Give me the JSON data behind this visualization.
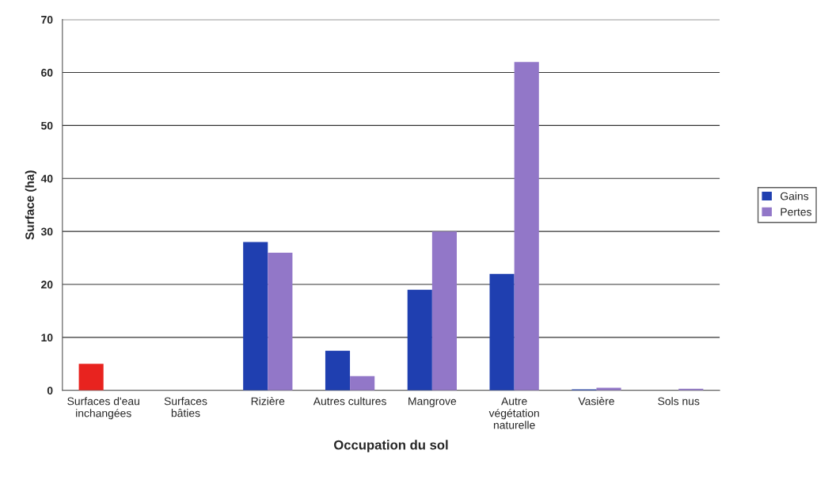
{
  "chart_data": {
    "type": "bar",
    "xlabel": "Occupation du sol",
    "ylabel": "Surface (ha)",
    "categories": [
      "Surfaces d'eau inchangées",
      "Surfaces bâties",
      "Rizière",
      "Autres cultures",
      "Mangrove",
      "Autre végétation naturelle",
      "Vasière",
      "Sols nus"
    ],
    "series": [
      {
        "name": "Gains",
        "color": "#1f3fb0",
        "colors": [
          "#e8231f",
          "#1f3fb0",
          "#1f3fb0",
          "#1f3fb0",
          "#1f3fb0",
          "#1f3fb0",
          "#1f3fb0",
          "#1f3fb0"
        ],
        "values": [
          5,
          0,
          28,
          7.5,
          19,
          22,
          0.2,
          0
        ]
      },
      {
        "name": "Pertes",
        "color": "#9277c8",
        "values": [
          null,
          0,
          26,
          2.7,
          30,
          62,
          0.5,
          0.3
        ]
      }
    ],
    "ylim": [
      0,
      70
    ],
    "yticks": [
      0,
      10,
      20,
      30,
      40,
      50,
      60,
      70
    ],
    "grid": "y",
    "legend": "right"
  }
}
